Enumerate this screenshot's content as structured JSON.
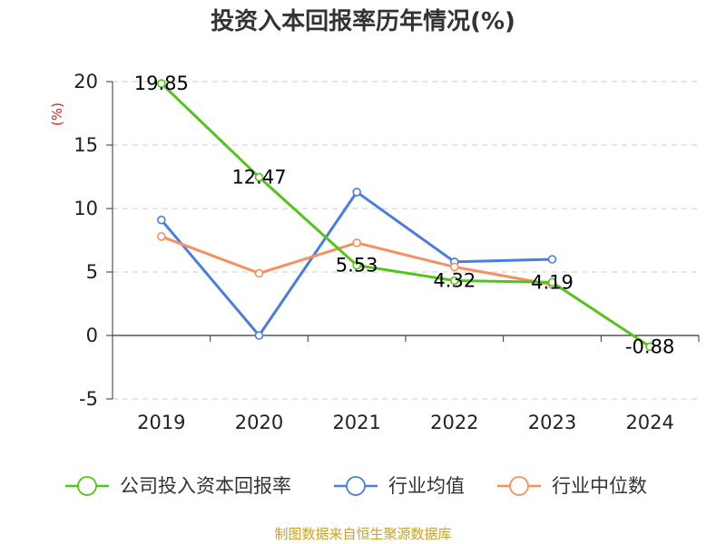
{
  "chart_data": {
    "type": "line",
    "title": "投资入本回报率历年情况(%)",
    "unit_label": "(%)",
    "categories": [
      "2019",
      "2020",
      "2021",
      "2022",
      "2023",
      "2024"
    ],
    "y_ticks": [
      "20",
      "15",
      "10",
      "5",
      "0",
      "-5"
    ],
    "ylim": [
      -5,
      20
    ],
    "grid": true,
    "legend_position": "bottom",
    "series": [
      {
        "name": "公司投入资本回报率",
        "color": "#52c41a",
        "values": [
          19.85,
          12.47,
          5.53,
          4.32,
          4.19,
          -0.88
        ],
        "data_labels": [
          "19.85",
          "12.47",
          "5.53",
          "4.32",
          "4.19",
          "-0.88"
        ]
      },
      {
        "name": "行业均值",
        "color": "#4a7de0",
        "values": [
          9.1,
          0.0,
          11.3,
          5.8,
          6.0,
          null
        ]
      },
      {
        "name": "行业中位数",
        "color": "#f59060",
        "values": [
          7.8,
          4.9,
          7.3,
          5.4,
          4.0,
          null
        ]
      }
    ],
    "source": "制图数据来自恒生聚源数据库"
  }
}
